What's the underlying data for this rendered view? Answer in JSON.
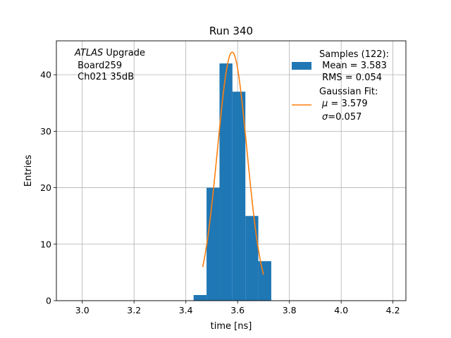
{
  "chart_data": {
    "type": "bar",
    "title": "Run 340",
    "xlabel": "time [ns]",
    "ylabel": "Entries",
    "xlim": [
      2.9,
      4.25
    ],
    "ylim": [
      0,
      46
    ],
    "grid": true,
    "xticks": [
      3.0,
      3.2,
      3.4,
      3.6,
      3.8,
      4.0,
      4.2
    ],
    "xtick_labels": [
      "3.0",
      "3.2",
      "3.4",
      "3.6",
      "3.8",
      "4.0",
      "4.2"
    ],
    "yticks": [
      0,
      10,
      20,
      30,
      40
    ],
    "ytick_labels": [
      "0",
      "10",
      "20",
      "30",
      "40"
    ],
    "histogram": {
      "bin_edges": [
        3.43,
        3.48,
        3.53,
        3.58,
        3.63,
        3.68,
        3.73
      ],
      "counts": [
        1,
        20,
        42,
        37,
        15,
        7
      ],
      "color": "#1f77b4"
    },
    "fit_curve": {
      "mu": 3.579,
      "sigma": 0.057,
      "amplitude": 44,
      "x_range": [
        3.465,
        3.7
      ],
      "color": "#ff7f0e"
    },
    "annotation": {
      "italic": "ATLAS",
      "line1_rest": " Upgrade",
      "line2": " Board259",
      "line3": " Ch021 35dB"
    },
    "legend": {
      "position": "top-right",
      "entries": [
        {
          "type": "patch",
          "color": "#1f77b4",
          "lines": [
            "Samples (122):",
            " Mean = 3.583",
            " RMS = 0.054"
          ]
        },
        {
          "type": "line",
          "color": "#ff7f0e",
          "line1": "Gaussian Fit:",
          "mu_text": " = 3.579",
          "sigma_text": "=0.057"
        }
      ]
    }
  }
}
